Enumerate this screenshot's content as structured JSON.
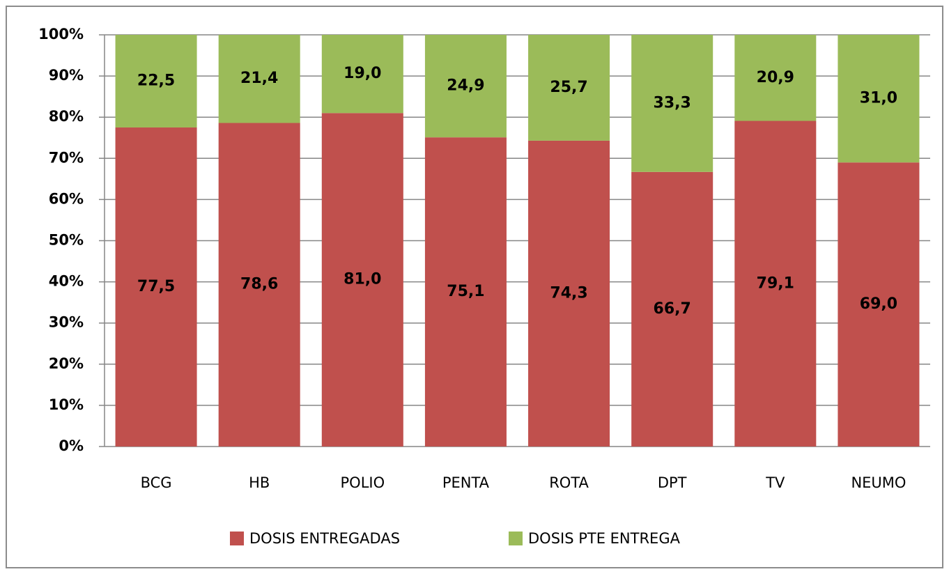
{
  "chart_data": {
    "type": "stacked_bar_percent",
    "categories": [
      "BCG",
      "HB",
      "POLIO",
      "PENTA",
      "ROTA",
      "DPT",
      "TV",
      "NEUMO"
    ],
    "series": [
      {
        "name": "DOSIS ENTREGADAS",
        "color": "#c0504d",
        "values": [
          77.5,
          78.6,
          81.0,
          75.1,
          74.3,
          66.7,
          79.1,
          69.0
        ],
        "value_labels": [
          "77,5",
          "78,6",
          "81,0",
          "75,1",
          "74,3",
          "66,7",
          "79,1",
          "69,0"
        ]
      },
      {
        "name": "DOSIS PTE ENTREGA",
        "color": "#9bbb59",
        "values": [
          22.5,
          21.4,
          19.0,
          24.9,
          25.7,
          33.3,
          20.9,
          31.0
        ],
        "value_labels": [
          "22,5",
          "21,4",
          "19,0",
          "24,9",
          "25,7",
          "33,3",
          "20,9",
          "31,0"
        ]
      }
    ],
    "ylim": [
      0,
      100
    ],
    "yticks": [
      {
        "value": 0,
        "label": "0%"
      },
      {
        "value": 10,
        "label": "10%"
      },
      {
        "value": 20,
        "label": "20%"
      },
      {
        "value": 30,
        "label": "30%"
      },
      {
        "value": 40,
        "label": "40%"
      },
      {
        "value": 50,
        "label": "50%"
      },
      {
        "value": 60,
        "label": "60%"
      },
      {
        "value": 70,
        "label": "70%"
      },
      {
        "value": 80,
        "label": "80%"
      },
      {
        "value": 90,
        "label": "90%"
      },
      {
        "value": 100,
        "label": "100%"
      }
    ],
    "grid": true,
    "legend": "bottom"
  }
}
